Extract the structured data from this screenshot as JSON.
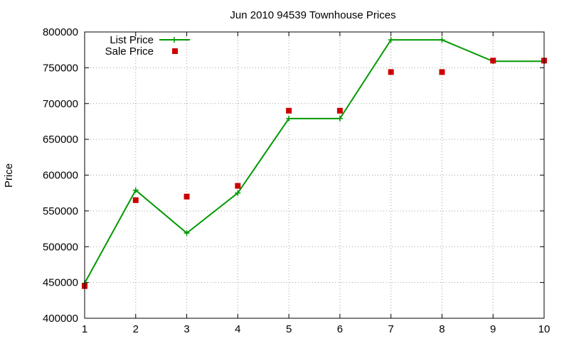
{
  "chart_data": {
    "type": "line",
    "title": "Jun 2010 94539 Townhouse Prices",
    "xlabel": "",
    "ylabel": "Price",
    "x": [
      1,
      2,
      3,
      4,
      5,
      6,
      7,
      8,
      9,
      10
    ],
    "xlim": [
      1,
      10
    ],
    "ylim": [
      400000,
      800000
    ],
    "xticks": [
      "1",
      "2",
      "3",
      "4",
      "5",
      "6",
      "7",
      "8",
      "9",
      "10"
    ],
    "yticks": [
      "400000",
      "450000",
      "500000",
      "550000",
      "600000",
      "650000",
      "700000",
      "750000",
      "800000"
    ],
    "grid": true,
    "legend_position": "top-left",
    "series": [
      {
        "name": "List Price",
        "style": "line-with-plus-markers",
        "color": "#009900",
        "values": [
          449000,
          579000,
          519000,
          575000,
          679000,
          679000,
          789000,
          789000,
          759000,
          759000
        ]
      },
      {
        "name": "Sale Price",
        "style": "square-points",
        "color": "#cc0000",
        "values": [
          445000,
          565000,
          570000,
          585000,
          690000,
          690000,
          744000,
          744000,
          760000,
          760000
        ]
      }
    ]
  }
}
